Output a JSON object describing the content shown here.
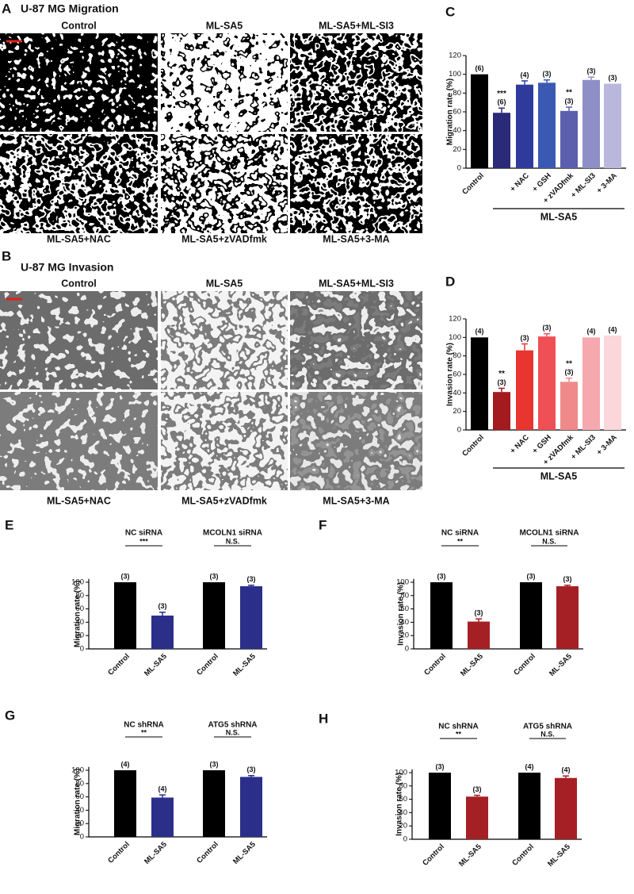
{
  "panels": {
    "A": {
      "panel_label": "A",
      "title": "U-87 MG  Migration",
      "top_labels": [
        "Control",
        "ML-SA5",
        "ML-SA5+ML-SI3"
      ],
      "bottom_labels": [
        "ML-SA5+NAC",
        "ML-SA5+zVADfmk",
        "ML-SA5+3-MA"
      ]
    },
    "B": {
      "panel_label": "B",
      "title": "U-87 MG  Invasion",
      "top_labels": [
        "Control",
        "ML-SA5",
        "ML-SA5+ML-SI3"
      ],
      "bottom_labels": [
        "ML-SA5+NAC",
        "ML-SA5+zVADfmk",
        "ML-SA5+3-MA"
      ]
    }
  },
  "chart_data": [
    {
      "type": "bar",
      "panel_label": "C",
      "ylabel": "Migration rate (%)",
      "categories": [
        "Control",
        null,
        "+ NAC",
        "+ GSH",
        "+ zVADfmk",
        "+ ML-SI3",
        "+ 3-MA"
      ],
      "values": [
        100,
        59,
        89,
        91,
        61,
        94,
        90
      ],
      "errors": [
        0,
        5,
        4,
        3,
        4,
        3,
        0
      ],
      "n_labels": [
        "(6)",
        "(6)",
        "(4)",
        "(3)",
        "(3)",
        "(3)",
        "(3)"
      ],
      "significance": [
        null,
        "***",
        null,
        null,
        "**",
        null,
        null
      ],
      "colors": [
        "#000000",
        "#2a2a78",
        "#2f3b9c",
        "#3a59b2",
        "#5b5fae",
        "#8f8fc8",
        "#bab7dd"
      ],
      "bracket_label": "ML-SA5",
      "ylim": [
        0,
        120
      ],
      "yticks": [
        0,
        20,
        40,
        60,
        80,
        100,
        120
      ]
    },
    {
      "type": "bar",
      "panel_label": "D",
      "ylabel": "Invasion rate (%)",
      "categories": [
        "Control",
        null,
        "+ NAC",
        "+ GSH",
        "+ zVADfmk",
        "+ ML-SI3",
        "+ 3-MA"
      ],
      "values": [
        100,
        41,
        86,
        101,
        52,
        100,
        102
      ],
      "errors": [
        0,
        4,
        7,
        3,
        4,
        0,
        0
      ],
      "n_labels": [
        "(4)",
        "(3)",
        "(3)",
        "(3)",
        "(3)",
        "(4)",
        "(4)"
      ],
      "significance": [
        null,
        "**",
        null,
        null,
        "**",
        null,
        null
      ],
      "colors": [
        "#000000",
        "#a31a1f",
        "#e8352f",
        "#ee5055",
        "#f08a8a",
        "#f5a8ae",
        "#fbd6db"
      ],
      "bracket_label": "ML-SA5",
      "ylim": [
        0,
        120
      ],
      "yticks": [
        0,
        20,
        40,
        60,
        80,
        100,
        120
      ]
    },
    {
      "type": "bar",
      "panel_label": "E",
      "ylabel": "Migration rate (%)",
      "categories": [
        "Control",
        "ML-SA5",
        "Control",
        "ML-SA5"
      ],
      "values": [
        100,
        50,
        100,
        94
      ],
      "errors": [
        0,
        5,
        0,
        1.5
      ],
      "n_labels": [
        "(3)",
        "(3)",
        "(3)",
        "(3)"
      ],
      "colors": [
        "#000000",
        "#2b2f8a",
        "#000000",
        "#2b2f8a"
      ],
      "groups": [
        {
          "name": "NC siRNA",
          "significance": "***"
        },
        {
          "name": "MCOLN1 siRNA",
          "significance": "N.S."
        }
      ],
      "ylim": [
        0,
        105
      ],
      "yticks": [
        0,
        20,
        40,
        60,
        80,
        100
      ]
    },
    {
      "type": "bar",
      "panel_label": "F",
      "ylabel": "Invasion rate (%)",
      "categories": [
        "Control",
        "ML-SA5",
        "Control",
        "ML-SA5"
      ],
      "values": [
        100,
        41,
        100,
        94
      ],
      "errors": [
        0,
        4,
        0,
        1.5
      ],
      "n_labels": [
        "(3)",
        "(3)",
        "(3)",
        "(3)"
      ],
      "colors": [
        "#000000",
        "#a52025",
        "#000000",
        "#a52025"
      ],
      "groups": [
        {
          "name": "NC siRNA",
          "significance": "**"
        },
        {
          "name": "MCOLN1 siRNA",
          "significance": "N.S."
        }
      ],
      "ylim": [
        0,
        105
      ],
      "yticks": [
        0,
        20,
        40,
        60,
        80,
        100
      ]
    },
    {
      "type": "bar",
      "panel_label": "G",
      "ylabel": "Migration rate (%)",
      "categories": [
        "Control",
        "ML-SA5",
        "Control",
        "ML-SA5"
      ],
      "values": [
        100,
        59,
        100,
        90
      ],
      "errors": [
        0,
        4,
        0,
        2
      ],
      "n_labels": [
        "(4)",
        "(4)",
        "(3)",
        "(3)"
      ],
      "colors": [
        "#000000",
        "#2b2f8a",
        "#000000",
        "#2b2f8a"
      ],
      "groups": [
        {
          "name": "NC shRNA",
          "significance": "**"
        },
        {
          "name": "ATG5 shRNA",
          "significance": "N.S."
        }
      ],
      "ylim": [
        0,
        105
      ],
      "yticks": [
        0,
        20,
        40,
        60,
        80,
        100
      ]
    },
    {
      "type": "bar",
      "panel_label": "H",
      "ylabel": "Invasion rate (%)",
      "categories": [
        "Control",
        "ML-SA5",
        "Control",
        "ML-SA5"
      ],
      "values": [
        100,
        64,
        100,
        92
      ],
      "errors": [
        0,
        2,
        0,
        3
      ],
      "n_labels": [
        "(3)",
        "(3)",
        "(4)",
        "(4)"
      ],
      "colors": [
        "#000000",
        "#a52025",
        "#000000",
        "#a52025"
      ],
      "groups": [
        {
          "name": "NC shRNA",
          "significance": "**"
        },
        {
          "name": "ATG5 shRNA",
          "significance": "N.S."
        }
      ],
      "ylim": [
        0,
        105
      ],
      "yticks": [
        0,
        20,
        40,
        60,
        80,
        100
      ]
    }
  ]
}
